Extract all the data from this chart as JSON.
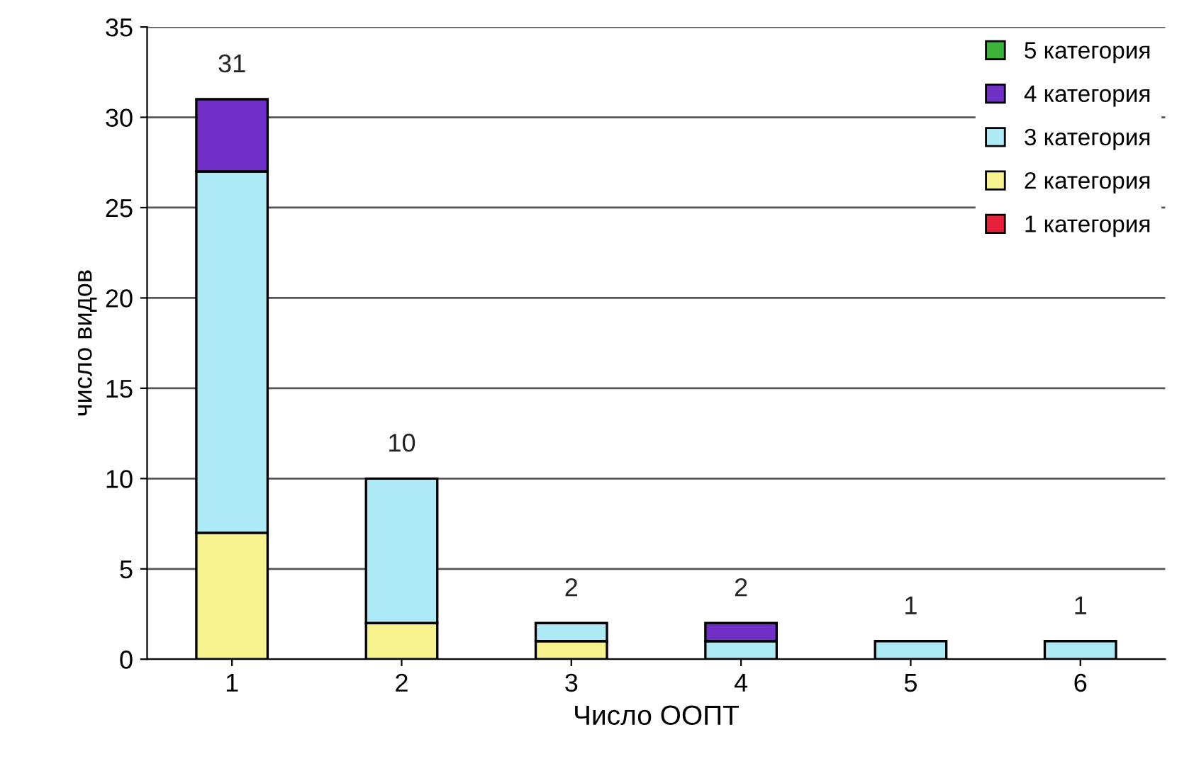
{
  "chart_data": {
    "type": "bar",
    "stacked": true,
    "xlabel": "Число ООПТ",
    "ylabel": "число видов",
    "categories": [
      "1",
      "2",
      "3",
      "4",
      "5",
      "6"
    ],
    "series": [
      {
        "name": "1 категория",
        "color": "#e8203a",
        "values": [
          0,
          0,
          0,
          0,
          0,
          0
        ]
      },
      {
        "name": "2 категория",
        "color": "#f8f28e",
        "values": [
          7,
          2,
          1,
          0,
          0,
          0
        ]
      },
      {
        "name": "3 категория",
        "color": "#aeeaf6",
        "values": [
          20,
          8,
          1,
          1,
          1,
          1
        ]
      },
      {
        "name": "4 категория",
        "color": "#7030c8",
        "values": [
          4,
          0,
          0,
          1,
          0,
          0
        ]
      },
      {
        "name": "5 категория",
        "color": "#3cb43c",
        "values": [
          0,
          0,
          0,
          0,
          0,
          0
        ]
      }
    ],
    "totals": [
      "31",
      "10",
      "2",
      "2",
      "1",
      "1"
    ],
    "ylim": [
      0,
      35
    ],
    "yticks": [
      0,
      5,
      10,
      15,
      20,
      25,
      30,
      35
    ],
    "grid": "y",
    "legend": "top right"
  }
}
